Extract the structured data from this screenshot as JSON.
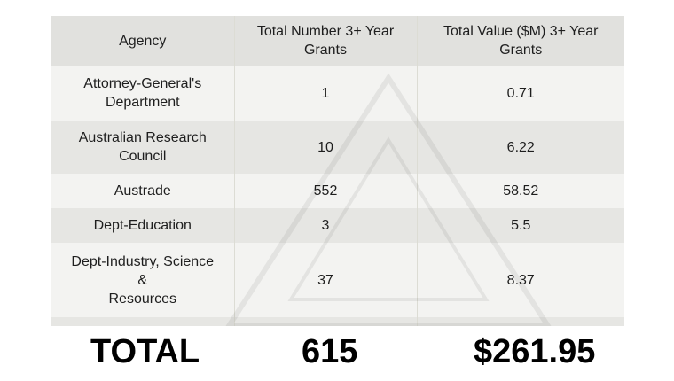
{
  "table": {
    "headers": [
      "Agency",
      "Total Number 3+ Year Grants",
      "Total Value ($M) 3+ Year Grants"
    ],
    "rows": [
      {
        "agency": [
          "Attorney-General's",
          "Department"
        ],
        "count": "1",
        "value": "0.71"
      },
      {
        "agency": [
          "Australian Research",
          "Council"
        ],
        "count": "10",
        "value": "6.22"
      },
      {
        "agency": [
          "Austrade"
        ],
        "count": "552",
        "value": "58.52"
      },
      {
        "agency": [
          "Dept-Education"
        ],
        "count": "3",
        "value": "5.5"
      },
      {
        "agency": [
          "Dept-Industry, Science",
          "&",
          "Resources"
        ],
        "count": "37",
        "value": "8.37"
      }
    ]
  },
  "totals": {
    "label": "TOTAL",
    "count": "615",
    "value": "$261.95"
  }
}
